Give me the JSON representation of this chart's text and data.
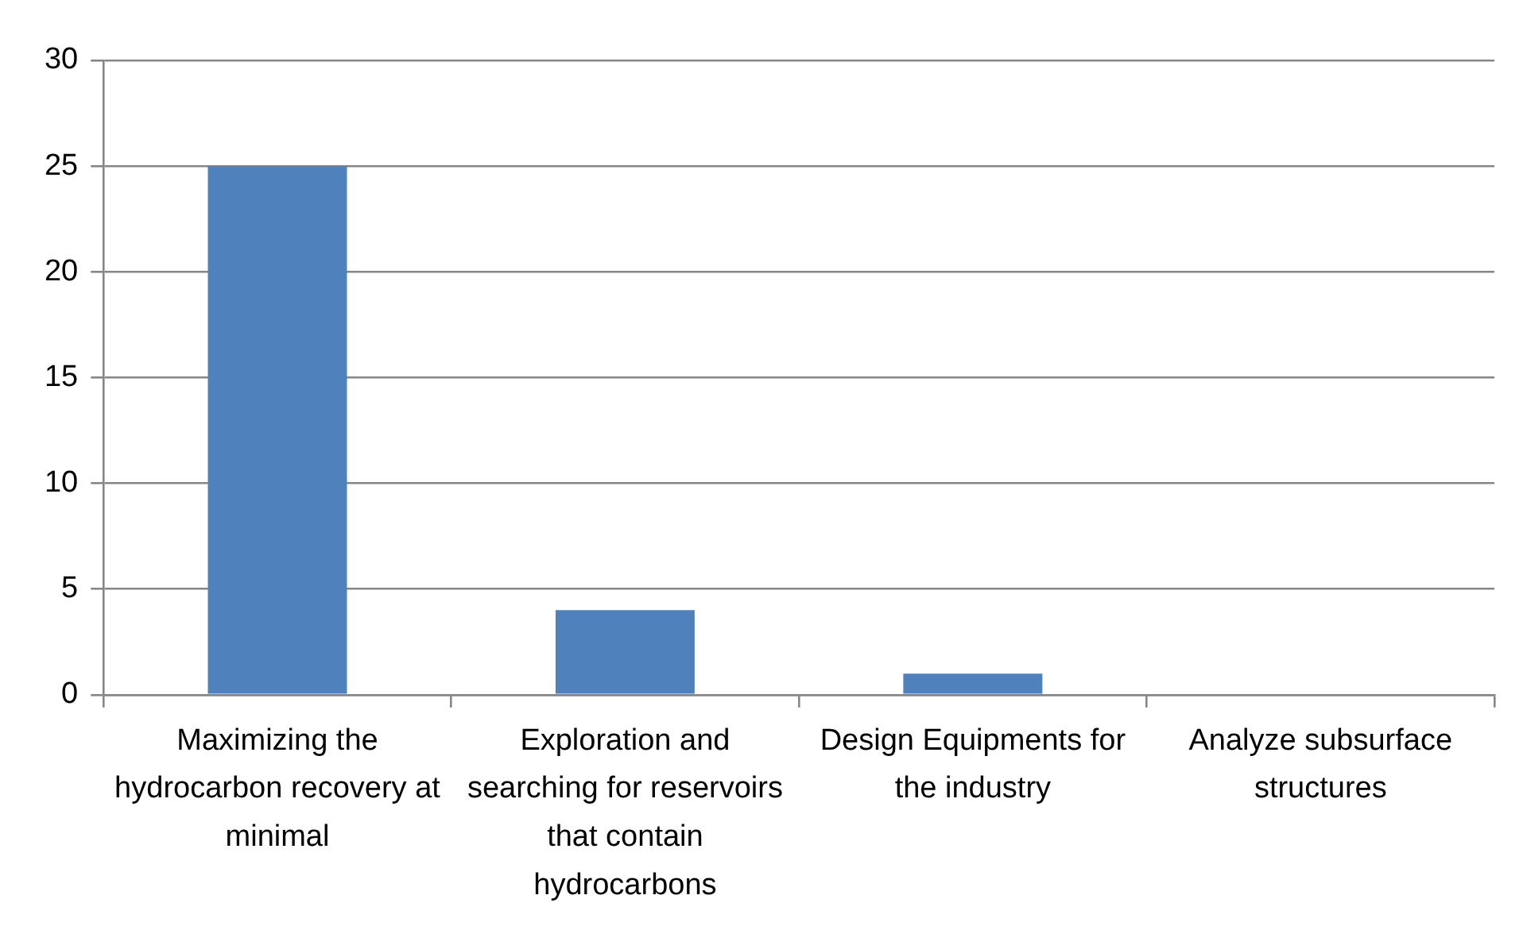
{
  "chart_data": {
    "type": "bar",
    "categories": [
      "Maximizing the hydrocarbon recovery at minimal",
      "Exploration and searching for reservoirs that contain hydrocarbons",
      "Design Equipments for the industry",
      "Analyze subsurface structures"
    ],
    "values": [
      25,
      4,
      1,
      0
    ],
    "color": "#4f81bd",
    "ylim": [
      0,
      30
    ],
    "yticks": [
      0,
      5,
      10,
      15,
      20,
      25,
      30
    ],
    "grid": "y"
  }
}
